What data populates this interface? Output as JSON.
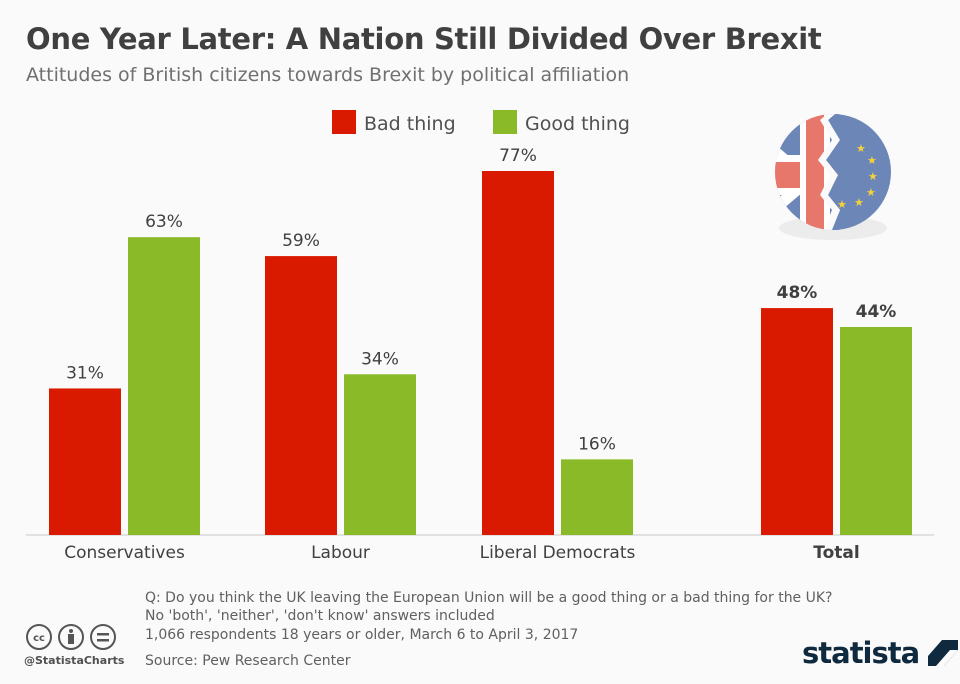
{
  "title": "One Year Later: A Nation Still Divided Over Brexit",
  "subtitle": "Attitudes of British citizens towards Brexit by political affiliation",
  "chart_data": {
    "type": "bar",
    "categories": [
      "Conservatives",
      "Labour",
      "Liberal Democrats",
      "Total"
    ],
    "series": [
      {
        "name": "Bad thing",
        "values": [
          31,
          59,
          77,
          48
        ],
        "color": "#d91a00"
      },
      {
        "name": "Good thing",
        "values": [
          63,
          34,
          16,
          44
        ],
        "color": "#8aba27"
      }
    ],
    "unit": "%",
    "ylim": [
      0,
      80
    ],
    "grid": false,
    "legend": "top-center",
    "bold_categories": [
      "Total"
    ]
  },
  "notes": [
    "Q: Do you think the UK leaving the European Union will be a good thing or a bad thing for the UK?",
    "No 'both', 'neither', 'don't know' answers included",
    "1,066 respondents 18 years or older, March 6 to April 3, 2017"
  ],
  "source": "Source: Pew Research Center",
  "handle": "@StatistaCharts",
  "brand": "statista",
  "icons": [
    "creative-commons-icon",
    "attribution-icon",
    "no-derivatives-icon",
    "broken-uk-eu-flag-icon"
  ]
}
